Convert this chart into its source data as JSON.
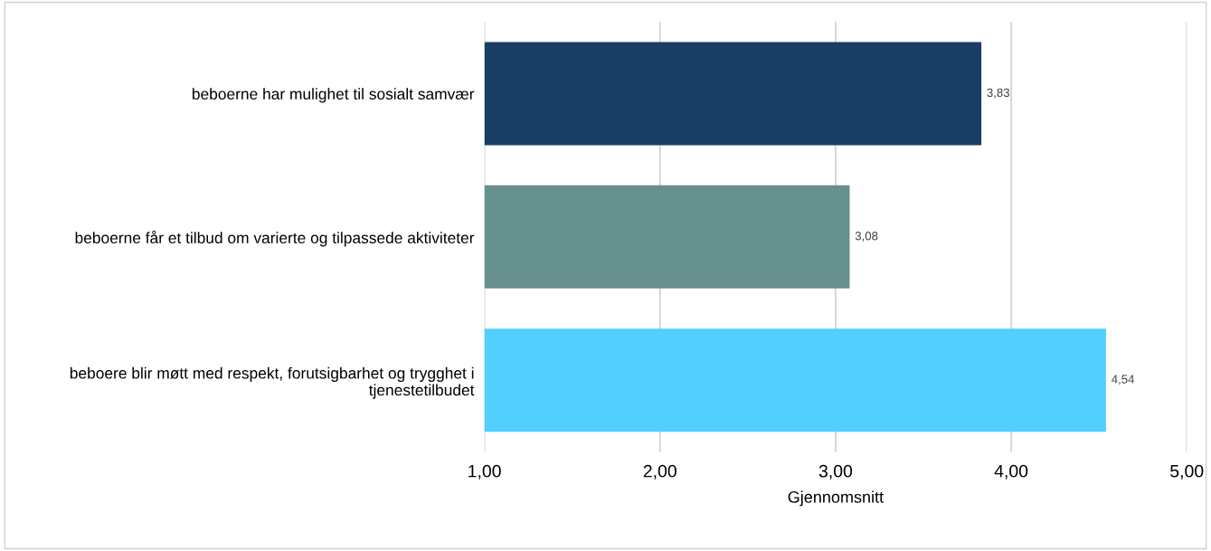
{
  "chart_data": {
    "type": "bar",
    "orientation": "horizontal",
    "xlabel": "Gjennomsnitt",
    "categories": [
      "beboerne har mulighet til sosialt samvær",
      "beboerne får et tilbud om varierte og tilpassede aktiviteter",
      "beboere blir møtt med respekt, forutsigbarhet og trygghet i tjenestetilbudet"
    ],
    "values": [
      3.83,
      3.08,
      4.54
    ],
    "colors": [
      "#1a3d63",
      "#66908d",
      "#52cfff"
    ],
    "value_labels": [
      "3,83",
      "3,08",
      "4,54"
    ],
    "xlim": [
      1,
      5
    ],
    "xticks": [
      {
        "value": 1,
        "label": "1,00"
      },
      {
        "value": 2,
        "label": "2,00"
      },
      {
        "value": 3,
        "label": "3,00"
      },
      {
        "value": 4,
        "label": "4,00"
      },
      {
        "value": 5,
        "label": "5,00"
      }
    ],
    "grid": "x",
    "legend": false
  }
}
